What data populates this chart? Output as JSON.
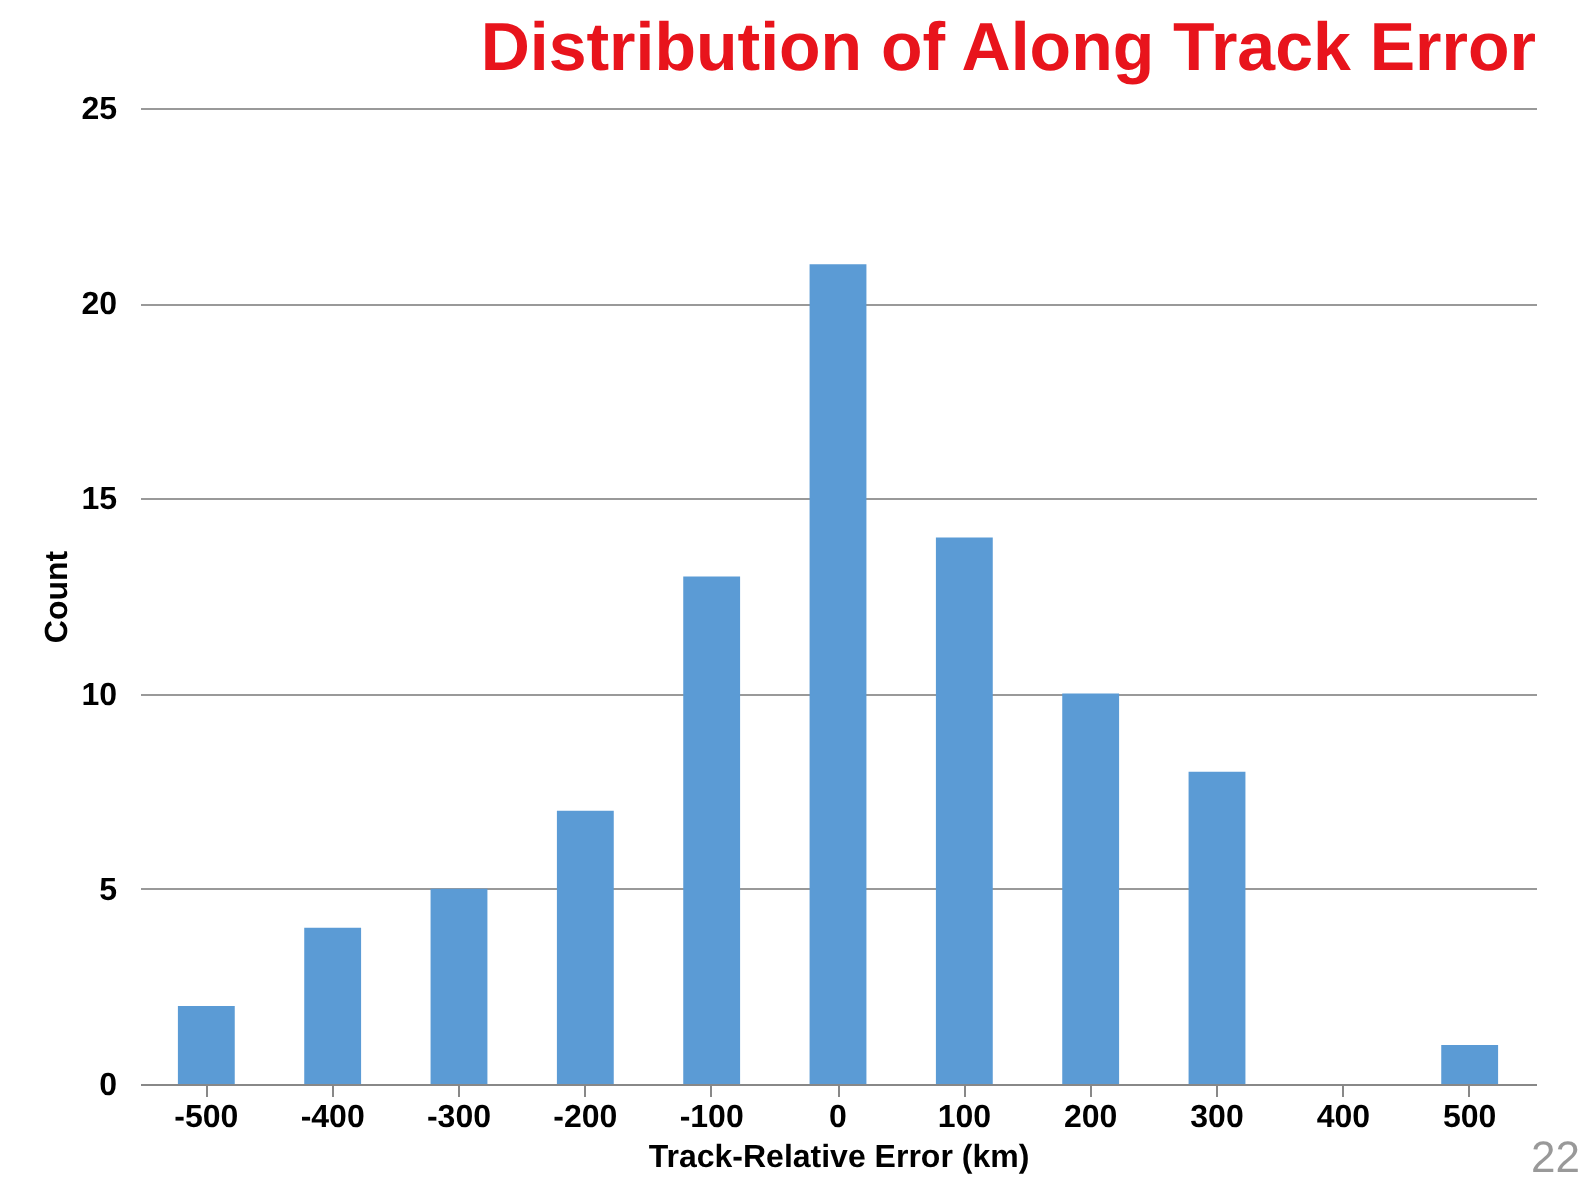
{
  "chart_data": {
    "type": "bar",
    "title": "Distribution of Along Track Error",
    "xlabel": "Track-Relative Error (km)",
    "ylabel": "Count",
    "categories": [
      "-500",
      "-400",
      "-300",
      "-200",
      "-100",
      "0",
      "100",
      "200",
      "300",
      "400",
      "500"
    ],
    "values": [
      2,
      4,
      5,
      7,
      13,
      21,
      14,
      10,
      8,
      0,
      1
    ],
    "color": "#5b9bd5",
    "ylim": [
      0,
      25
    ],
    "yticks": [
      0,
      5,
      10,
      15,
      20,
      25
    ],
    "grid": "y",
    "annotations": [
      "22"
    ]
  }
}
